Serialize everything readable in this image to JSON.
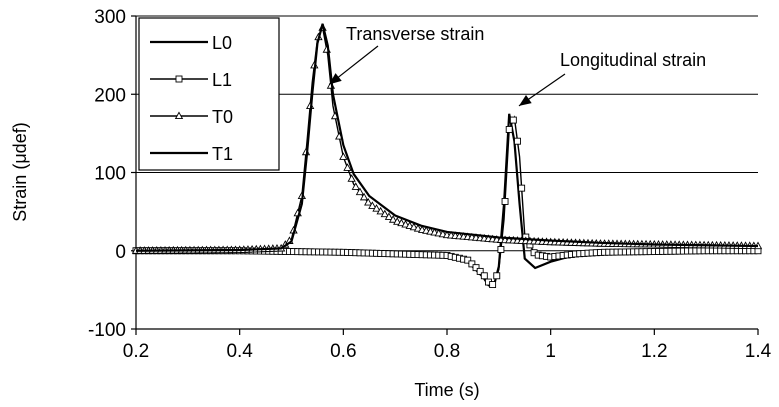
{
  "chart_data": {
    "type": "line",
    "title": "",
    "xlabel": "Time (s)",
    "ylabel": "Strain (μdef)",
    "xlim": [
      0.2,
      1.4
    ],
    "ylim": [
      -100,
      300
    ],
    "x_ticks": [
      0.2,
      0.4,
      0.6,
      0.8,
      1.0,
      1.2,
      1.4
    ],
    "x_tick_labels": [
      "0.2",
      "0.4",
      "0.6",
      "0.8",
      "1",
      "1.2",
      "1.4"
    ],
    "y_ticks": [
      -100,
      0,
      100,
      200,
      300
    ],
    "y_tick_labels": [
      "-100",
      "0",
      "100",
      "200",
      "300"
    ],
    "grid": "horizontal",
    "legend_position": "top-left",
    "series": [
      {
        "name": "L0",
        "marker": "none",
        "x": [
          0.2,
          0.3,
          0.4,
          0.5,
          0.6,
          0.7,
          0.8,
          0.84,
          0.87,
          0.88,
          0.89,
          0.9,
          0.91,
          0.92,
          0.93,
          0.94,
          0.95,
          0.97,
          1.0,
          1.05,
          1.1,
          1.2,
          1.3,
          1.4
        ],
        "y": [
          0,
          0,
          0,
          -1,
          -2,
          -4,
          -6,
          -14,
          -34,
          -44,
          -46,
          -20,
          60,
          175,
          140,
          60,
          -10,
          -22,
          -14,
          -5,
          -2,
          -1,
          0,
          0
        ]
      },
      {
        "name": "L1",
        "marker": "square",
        "x": [
          0.2,
          0.3,
          0.4,
          0.5,
          0.6,
          0.7,
          0.8,
          0.84,
          0.87,
          0.88,
          0.89,
          0.9,
          0.91,
          0.92,
          0.93,
          0.94,
          0.95,
          0.97,
          1.0,
          1.05,
          1.1,
          1.2,
          1.3,
          1.4
        ],
        "y": [
          0,
          0,
          0,
          -1,
          -2,
          -4,
          -6,
          -12,
          -30,
          -40,
          -44,
          -24,
          40,
          155,
          170,
          120,
          20,
          -5,
          -8,
          -4,
          -2,
          -1,
          0,
          0
        ]
      },
      {
        "name": "T0",
        "marker": "triangle",
        "x": [
          0.2,
          0.4,
          0.48,
          0.5,
          0.52,
          0.53,
          0.54,
          0.55,
          0.56,
          0.57,
          0.58,
          0.6,
          0.62,
          0.65,
          0.7,
          0.75,
          0.8,
          0.9,
          1.0,
          1.1,
          1.2,
          1.3,
          1.4
        ],
        "y": [
          0,
          1,
          3,
          15,
          70,
          140,
          215,
          270,
          285,
          250,
          185,
          120,
          85,
          60,
          38,
          27,
          20,
          14,
          11,
          9,
          8,
          7,
          6
        ]
      },
      {
        "name": "T1",
        "marker": "none",
        "x": [
          0.2,
          0.4,
          0.48,
          0.5,
          0.52,
          0.53,
          0.54,
          0.55,
          0.56,
          0.57,
          0.58,
          0.6,
          0.62,
          0.65,
          0.7,
          0.75,
          0.8,
          0.9,
          1.0,
          1.1,
          1.2,
          1.3,
          1.4
        ],
        "y": [
          0,
          1,
          3,
          12,
          60,
          125,
          200,
          265,
          290,
          262,
          200,
          135,
          98,
          70,
          45,
          32,
          24,
          17,
          13,
          10,
          8,
          7,
          6
        ]
      }
    ],
    "annotations": [
      {
        "text": "Transverse strain",
        "arrow_to": [
          0.565,
          210
        ]
      },
      {
        "text": "Longitudinal strain",
        "arrow_to": [
          0.935,
          180
        ]
      }
    ]
  }
}
